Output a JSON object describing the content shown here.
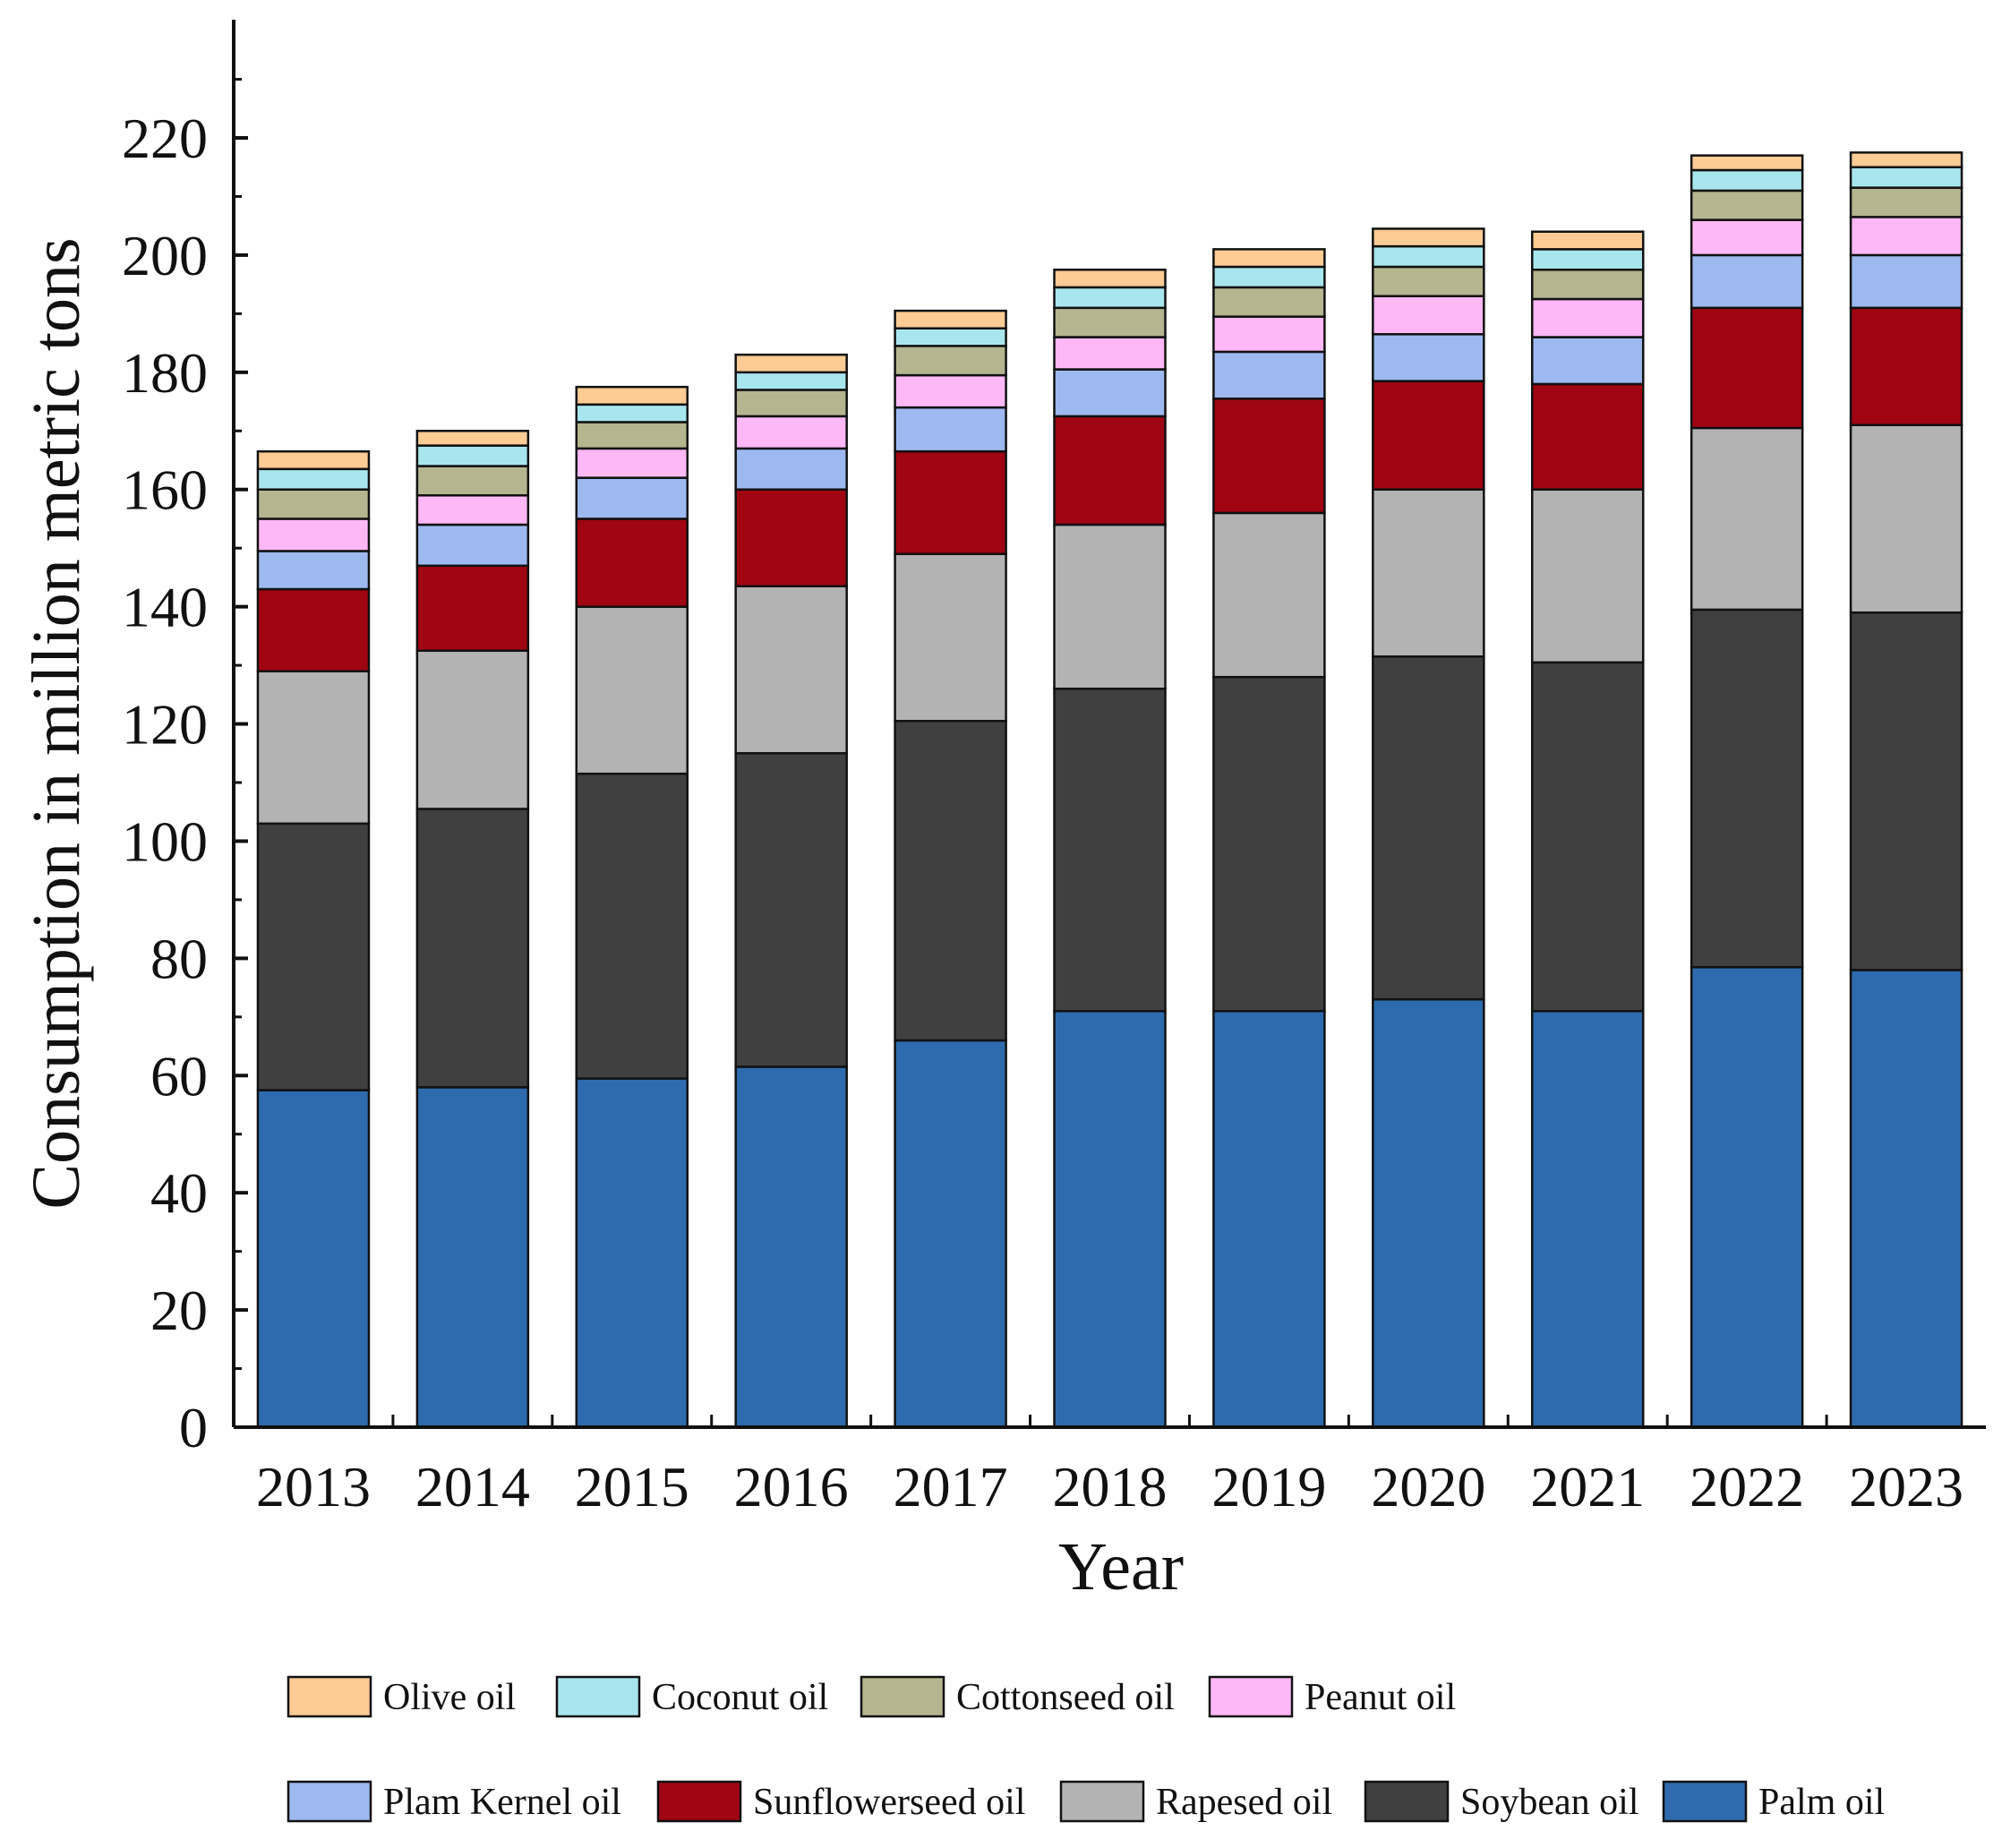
{
  "chart_data": {
    "type": "bar",
    "stacked": true,
    "title": "",
    "xlabel": "Year",
    "ylabel": "Consumption in million metric tons",
    "ylim": [
      0,
      240
    ],
    "yticks": [
      0,
      20,
      40,
      60,
      80,
      100,
      120,
      140,
      160,
      180,
      200,
      220
    ],
    "grid": false,
    "legend_position": "bottom",
    "categories": [
      "2013",
      "2014",
      "2015",
      "2016",
      "2017",
      "2018",
      "2019",
      "2020",
      "2021",
      "2022",
      "2023"
    ],
    "series": [
      {
        "name": "Palm oil",
        "color": "#2E6BAE",
        "values": [
          57.5,
          58,
          59.5,
          61.5,
          66,
          71,
          71,
          73,
          71,
          78.5,
          78
        ]
      },
      {
        "name": "Soybean oil",
        "color": "#404040",
        "values": [
          45.5,
          47.5,
          52,
          53.5,
          54.5,
          55,
          57,
          58.5,
          59.5,
          61,
          61
        ]
      },
      {
        "name": "Rapesed oil",
        "color": "#B3B3B3",
        "values": [
          26,
          27,
          28.5,
          28.5,
          28.5,
          28,
          28,
          28.5,
          29.5,
          31,
          32
        ]
      },
      {
        "name": "Sunflowerseed oil",
        "color": "#A00512",
        "values": [
          14,
          14.5,
          15,
          16.5,
          17.5,
          18.5,
          19.5,
          18.5,
          18,
          20.5,
          20
        ]
      },
      {
        "name": "Plam Kernel oil",
        "color": "#9DB9F0",
        "values": [
          6.5,
          7,
          7,
          7,
          7.5,
          8,
          8,
          8,
          8,
          9,
          9
        ]
      },
      {
        "name": "Peanut oil",
        "color": "#FFB8F6",
        "values": [
          5.5,
          5,
          5,
          5.5,
          5.5,
          5.5,
          6,
          6.5,
          6.5,
          6,
          6.5
        ]
      },
      {
        "name": "Cottonseed oil",
        "color": "#B5B590",
        "values": [
          5,
          5,
          4.5,
          4.5,
          5,
          5,
          5,
          5,
          5,
          5,
          5
        ]
      },
      {
        "name": "Coconut oil",
        "color": "#A8E6EE",
        "values": [
          3.5,
          3.5,
          3,
          3,
          3,
          3.5,
          3.5,
          3.5,
          3.5,
          3.5,
          3.5
        ]
      },
      {
        "name": "Olive oil",
        "color": "#FDCB94",
        "values": [
          3,
          2.5,
          3,
          3,
          3,
          3,
          3,
          3,
          3,
          2.5,
          2.5
        ]
      }
    ],
    "legend_rows": [
      [
        "Olive oil",
        "Coconut oil",
        "Cottonseed oil",
        "Peanut oil"
      ],
      [
        "Plam Kernel oil",
        "Sunflowerseed oil",
        "Rapesed oil",
        "Soybean oil",
        "Palm oil"
      ]
    ]
  }
}
